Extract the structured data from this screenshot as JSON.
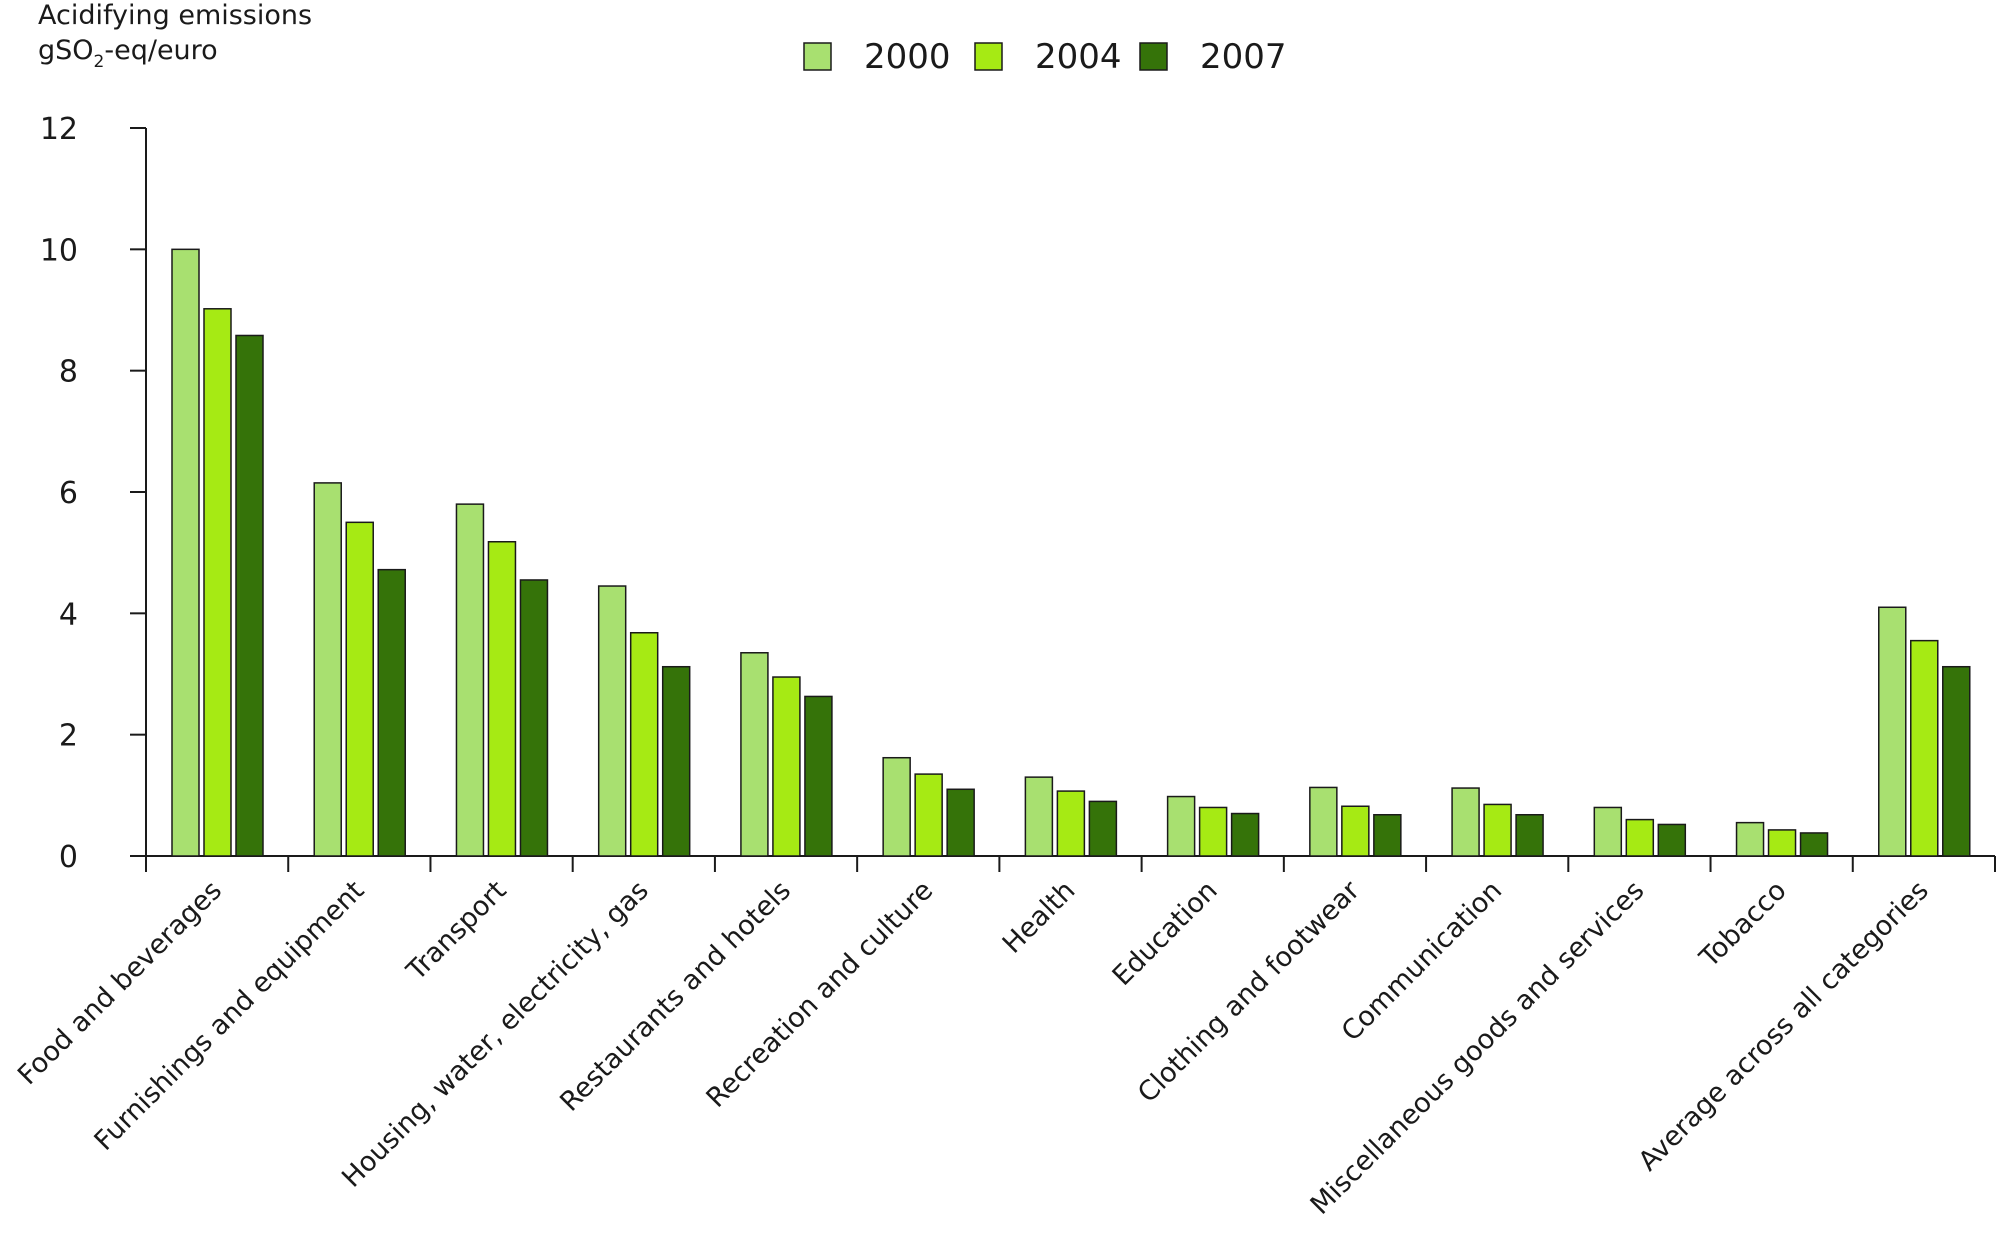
{
  "chart_data": {
    "type": "bar",
    "ylabel_line1": "Acidifying emissions",
    "ylabel_line2_pre": "gSO",
    "ylabel_line2_sub": "2",
    "ylabel_line2_post": "-eq/euro",
    "ylim": [
      0,
      12
    ],
    "yticks": [
      0,
      2,
      4,
      6,
      8,
      10,
      12
    ],
    "ytick_labels": [
      "0",
      "2",
      "4",
      "6",
      "8",
      "10",
      "12"
    ],
    "grid": false,
    "legend_position": "top-center",
    "categories": [
      "Food and beverages",
      "Furnishings and equipment",
      "Transport",
      "Housing, water, electricity, gas",
      "Restaurants and hotels",
      "Recreation and culture",
      "Health",
      "Education",
      "Clothing and footwear",
      "Communication",
      "Miscellaneous goods and services",
      "Tobacco",
      "Average across all categories"
    ],
    "series": [
      {
        "name": "2000",
        "color": "#a8e070",
        "values": [
          10.0,
          6.15,
          5.8,
          4.45,
          3.35,
          1.62,
          1.3,
          0.98,
          1.13,
          1.12,
          0.8,
          0.55,
          4.1
        ]
      },
      {
        "name": "2004",
        "color": "#a6ea14",
        "values": [
          9.02,
          5.5,
          5.18,
          3.68,
          2.95,
          1.35,
          1.07,
          0.8,
          0.82,
          0.85,
          0.6,
          0.43,
          3.55
        ]
      },
      {
        "name": "2007",
        "color": "#357309",
        "values": [
          8.58,
          4.72,
          4.55,
          3.12,
          2.63,
          1.1,
          0.9,
          0.7,
          0.68,
          0.68,
          0.52,
          0.38,
          3.12
        ]
      }
    ]
  }
}
